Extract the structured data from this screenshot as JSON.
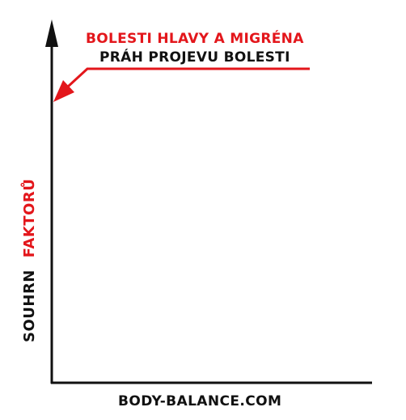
{
  "title": {
    "line1": "BOLESTI HLAVY A MIGRÉNA",
    "line2": "PRÁH PROJEVU BOLESTI"
  },
  "y_axis": {
    "label_part1": "SOUHRN",
    "label_part2": "FAKTORŮ"
  },
  "footer": {
    "text": "BODY-BALANCE.COM"
  },
  "colors": {
    "accent": "#e3161b",
    "axis": "#111111",
    "background": "#ffffff"
  },
  "icons": {
    "threshold_pointer": "arrow-pointer-icon",
    "axis_arrow": "arrowhead-up-icon"
  }
}
